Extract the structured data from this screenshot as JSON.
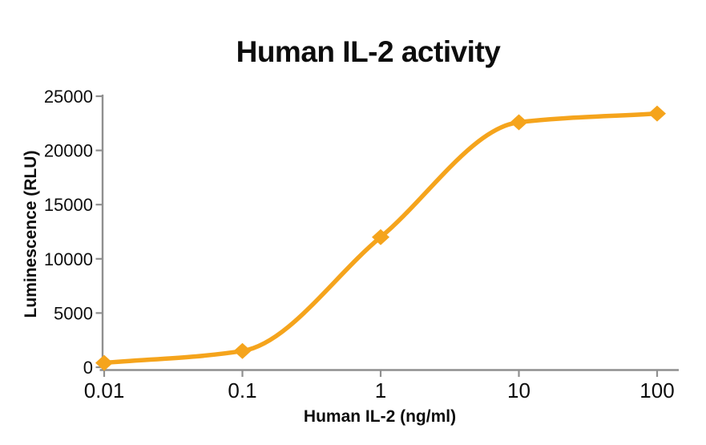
{
  "chart_data": {
    "type": "line",
    "title": "Human IL-2 activity",
    "xlabel": "Human IL-2 (ng/ml)",
    "ylabel": "Luminescence (RLU)",
    "x_scale": "log10",
    "x": [
      0.01,
      0.1,
      1,
      10,
      100
    ],
    "y": [
      400,
      1500,
      12000,
      22600,
      23400
    ],
    "x_tick_labels": [
      "0.01",
      "0.1",
      "1",
      "10",
      "100"
    ],
    "y_ticks": [
      0,
      5000,
      10000,
      15000,
      20000,
      25000
    ],
    "xlim": [
      0.01,
      100
    ],
    "ylim": [
      0,
      25000
    ],
    "marker": "diamond",
    "curve_shape": "sigmoid-dose-response",
    "grid": false,
    "legend": "none",
    "colors": {
      "line": "#F5A41C",
      "marker": "#F5A41C",
      "axis": "#8F8F8F",
      "text": "#0d0d0d",
      "background": "#FFFFFF"
    }
  }
}
